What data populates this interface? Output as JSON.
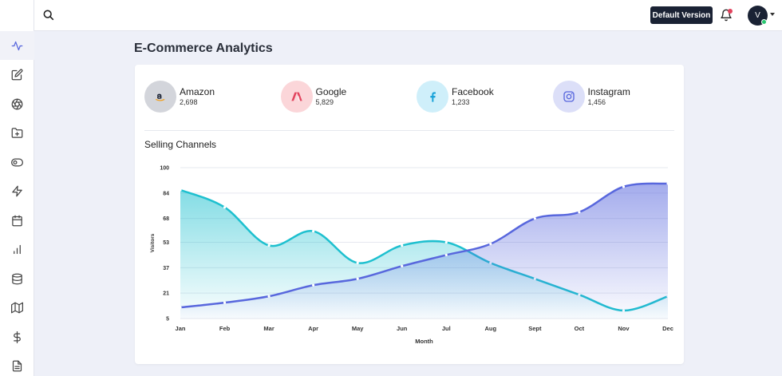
{
  "header": {
    "default_version_label": "Default Version",
    "avatar_initial": "V"
  },
  "sidebar": {
    "items": [
      {
        "icon": "activity-icon",
        "active": true
      },
      {
        "icon": "edit-icon",
        "active": false
      },
      {
        "icon": "aperture-icon",
        "active": false
      },
      {
        "icon": "folder-plus-icon",
        "active": false
      },
      {
        "icon": "toggle-icon",
        "active": false
      },
      {
        "icon": "zap-icon",
        "active": false
      },
      {
        "icon": "calendar-icon",
        "active": false
      },
      {
        "icon": "bar-chart-icon",
        "active": false
      },
      {
        "icon": "database-icon",
        "active": false
      },
      {
        "icon": "map-icon",
        "active": false
      },
      {
        "icon": "dollar-icon",
        "active": false
      },
      {
        "icon": "file-text-icon",
        "active": false
      }
    ]
  },
  "page": {
    "title": "E-Commerce Analytics"
  },
  "stats": [
    {
      "name": "Amazon",
      "value": "2,698",
      "icon": "amazon-icon",
      "bg": "#d3d5db",
      "color": "#1a2234"
    },
    {
      "name": "Google",
      "value": "5,829",
      "icon": "google-icon",
      "bg": "#fbd6d9",
      "color": "#e2435d"
    },
    {
      "name": "Facebook",
      "value": "1,233",
      "icon": "facebook-icon",
      "bg": "#cfeffa",
      "color": "#1aa3d9"
    },
    {
      "name": "Instagram",
      "value": "1,456",
      "icon": "instagram-icon",
      "bg": "#dcdff8",
      "color": "#5867dd"
    }
  ],
  "chart_data": {
    "type": "area",
    "title": "Selling Channels",
    "xlabel": "Month",
    "ylabel": "Visitors",
    "categories": [
      "Jan",
      "Feb",
      "Mar",
      "Apr",
      "May",
      "Jun",
      "Jul",
      "Aug",
      "Sept",
      "Oct",
      "Nov",
      "Dec"
    ],
    "y_ticks": [
      5,
      21,
      37,
      53,
      68,
      84,
      100
    ],
    "ylim": [
      5,
      100
    ],
    "grid": true,
    "series": [
      {
        "values": [
          86,
          75,
          51,
          60,
          40,
          51,
          53,
          40,
          30,
          20,
          10,
          19
        ],
        "color": "#1ec0cf"
      },
      {
        "values": [
          12,
          15,
          19,
          26,
          30,
          38,
          45,
          52,
          68,
          72,
          88,
          90
        ],
        "color": "#5867dd"
      }
    ]
  }
}
